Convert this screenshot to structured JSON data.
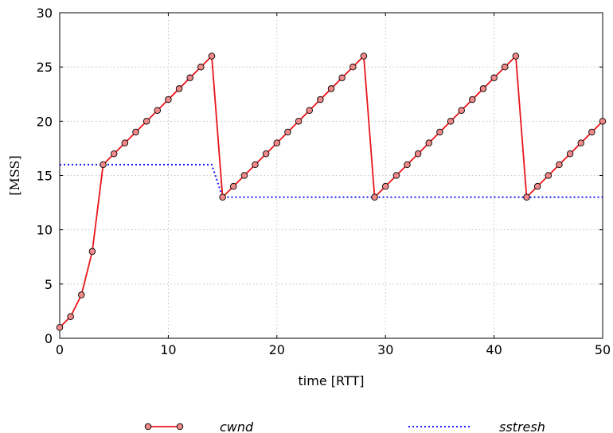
{
  "chart_data": {
    "type": "line",
    "title": "",
    "xlabel": "time [RTT]",
    "ylabel": "[MSS]",
    "xlim": [
      0,
      50
    ],
    "ylim": [
      0,
      30
    ],
    "xticks": [
      0,
      10,
      20,
      30,
      40,
      50
    ],
    "yticks": [
      0,
      5,
      10,
      15,
      20,
      25,
      30
    ],
    "grid": true,
    "legend_position": "bottom",
    "series": [
      {
        "name": "cwnd",
        "color": "#e8141a",
        "marker_fill": "#f08a8a",
        "style": "solid-with-markers",
        "x": [
          0,
          1,
          2,
          3,
          4,
          5,
          6,
          7,
          8,
          9,
          10,
          11,
          12,
          13,
          14,
          15,
          16,
          17,
          18,
          19,
          20,
          21,
          22,
          23,
          24,
          25,
          26,
          27,
          28,
          29,
          30,
          31,
          32,
          33,
          34,
          35,
          36,
          37,
          38,
          39,
          40,
          41,
          42,
          43,
          44,
          45,
          46,
          47,
          48,
          49,
          50
        ],
        "y": [
          1,
          2,
          4,
          8,
          16,
          17,
          18,
          19,
          20,
          21,
          22,
          23,
          24,
          25,
          26,
          13,
          14,
          15,
          16,
          17,
          18,
          19,
          20,
          21,
          22,
          23,
          24,
          25,
          26,
          13,
          14,
          15,
          16,
          17,
          18,
          19,
          20,
          21,
          22,
          23,
          24,
          25,
          26,
          13,
          14,
          15,
          16,
          17,
          18,
          19,
          20
        ]
      },
      {
        "name": "sstresh",
        "color": "#1a1aff",
        "style": "dotted",
        "x": [
          0,
          14,
          15,
          50
        ],
        "y": [
          16,
          16,
          13,
          13
        ]
      }
    ]
  }
}
